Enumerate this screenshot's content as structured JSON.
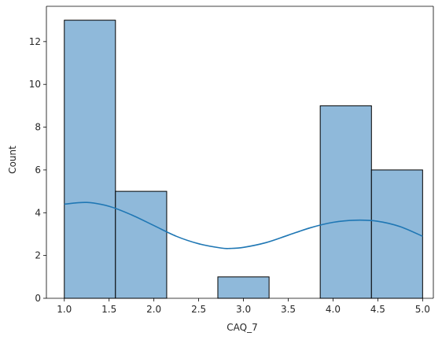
{
  "chart_data": {
    "type": "bar",
    "subtype": "histogram",
    "xlabel": "CAQ_7",
    "ylabel": "Count",
    "xlim": [
      0.8,
      5.12
    ],
    "ylim": [
      0,
      13.65
    ],
    "xticks": [
      1.0,
      1.5,
      2.0,
      2.5,
      3.0,
      3.5,
      4.0,
      4.5,
      5.0
    ],
    "xtick_labels": [
      "1.0",
      "1.5",
      "2.0",
      "2.5",
      "3.0",
      "3.5",
      "4.0",
      "4.5",
      "5.0"
    ],
    "yticks": [
      0,
      2,
      4,
      6,
      8,
      10,
      12
    ],
    "ytick_labels": [
      "0",
      "2",
      "4",
      "6",
      "8",
      "10",
      "12"
    ],
    "bins": [
      {
        "x0": 1.0,
        "x1": 1.571,
        "count": 13
      },
      {
        "x0": 1.571,
        "x1": 2.143,
        "count": 5
      },
      {
        "x0": 2.143,
        "x1": 2.714,
        "count": 0
      },
      {
        "x0": 2.714,
        "x1": 3.286,
        "count": 1
      },
      {
        "x0": 3.286,
        "x1": 3.857,
        "count": 0
      },
      {
        "x0": 3.857,
        "x1": 4.429,
        "count": 9
      },
      {
        "x0": 4.429,
        "x1": 5.0,
        "count": 6
      }
    ],
    "kde": {
      "x": [
        1.0,
        1.25,
        1.5,
        1.75,
        2.0,
        2.25,
        2.5,
        2.75,
        2.85,
        3.0,
        3.25,
        3.5,
        3.75,
        4.0,
        4.25,
        4.5,
        4.75,
        5.0
      ],
      "y": [
        4.4,
        4.48,
        4.3,
        3.9,
        3.4,
        2.9,
        2.55,
        2.35,
        2.33,
        2.38,
        2.6,
        2.95,
        3.3,
        3.55,
        3.65,
        3.6,
        3.35,
        2.9
      ]
    },
    "colors": {
      "bar_fill": "#8fb9da",
      "bar_edge": "#000000",
      "kde_line": "#1f77b4"
    },
    "grid": false,
    "legend": "none"
  }
}
